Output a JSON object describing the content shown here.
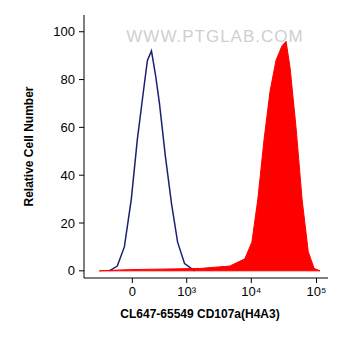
{
  "chart_data": {
    "type": "line",
    "x_label": "CL647-65549 CD107a(H4A3)",
    "y_label": "Relative Cell Number",
    "annotations": [
      "WWW.PTGLAB.COM"
    ],
    "xlim": [
      -800,
      150000
    ],
    "xticks": [
      0,
      {
        "value": 1000,
        "label": "10³"
      },
      {
        "value": 10000,
        "label": "10⁴"
      },
      {
        "value": 100000,
        "label": "10⁵"
      }
    ],
    "ylim": [
      -3,
      107
    ],
    "yticks": [
      0,
      20,
      40,
      60,
      80,
      100
    ],
    "grid": false,
    "series": [
      {
        "type": "line",
        "color": "#1b2070",
        "x": [
          -273,
          -167,
          -86,
          -11,
          53,
          120,
          167,
          218,
          273,
          333,
          434,
          561,
          711,
          924,
          1338
        ],
        "values": [
          0,
          2,
          10,
          30,
          55,
          75,
          88,
          92,
          82,
          70,
          48,
          28,
          12,
          3,
          0
        ]
      },
      {
        "type": "area",
        "color": "#ff0000",
        "x": [
          -435,
          -30,
          1605,
          4680,
          7950,
          10200,
          12600,
          15700,
          19350,
          23900,
          29400,
          34100,
          39300,
          48500,
          60000,
          74700,
          92000,
          113000
        ],
        "values": [
          0,
          0.5,
          1,
          2,
          5,
          12,
          30,
          55,
          75,
          88,
          94,
          96,
          85,
          60,
          30,
          8,
          1,
          0
        ]
      }
    ]
  }
}
